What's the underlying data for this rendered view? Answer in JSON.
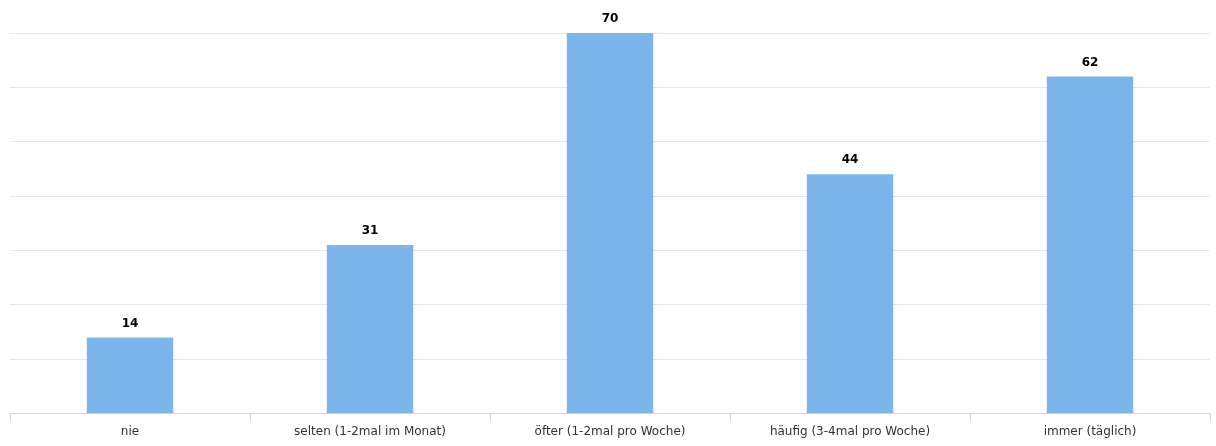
{
  "chart_data": {
    "type": "bar",
    "categories": [
      "nie",
      "selten (1-2mal im Monat)",
      "öfter (1-2mal pro Woche)",
      "häufig (3-4mal pro Woche)",
      "immer (täglich)"
    ],
    "values": [
      14,
      31,
      70,
      44,
      62
    ],
    "color": "#7cb5ec",
    "data_labels": true,
    "ylim": [
      0,
      70
    ],
    "yticks": [
      {
        "value": 0,
        "label": null
      },
      {
        "value": 10,
        "label": null
      },
      {
        "value": 20,
        "label": null
      },
      {
        "value": 30,
        "label": null
      },
      {
        "value": 40,
        "label": null
      },
      {
        "value": 50,
        "label": null
      },
      {
        "value": 60,
        "label": null
      },
      {
        "value": 70,
        "label": null
      }
    ],
    "grid": "y",
    "tick_labels": "x",
    "legend": false
  }
}
